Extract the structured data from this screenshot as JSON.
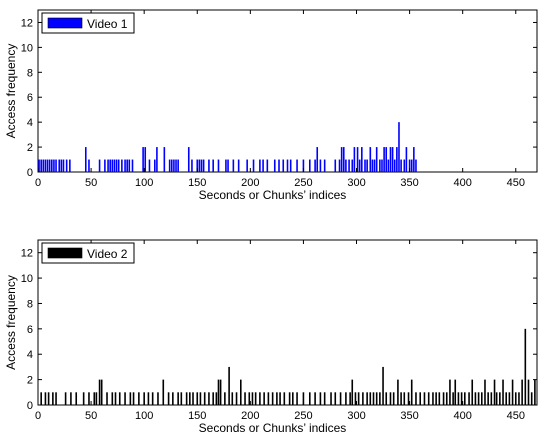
{
  "chart_data": [
    {
      "type": "bar",
      "xlabel": "Seconds or Chunks’ indices",
      "ylabel": "Access frequency",
      "xlim": [
        0,
        470
      ],
      "ylim": [
        0,
        13
      ],
      "xticks": [
        "0",
        "50",
        "100",
        "150",
        "200",
        "250",
        "300",
        "350",
        "400",
        "450"
      ],
      "yticks": [
        "0",
        "2",
        "4",
        "6",
        "8",
        "10",
        "12"
      ],
      "legend_position": "top-left",
      "color": "#0000ff",
      "series": [
        {
          "name": "Video 1",
          "x": [
            1,
            3,
            5,
            7,
            9,
            11,
            13,
            15,
            17,
            20,
            22,
            24,
            27,
            30,
            45,
            48,
            58,
            63,
            66,
            68,
            70,
            72,
            74,
            76,
            79,
            82,
            84,
            86,
            89,
            99,
            101,
            105,
            110,
            112,
            119,
            124,
            126,
            128,
            130,
            132,
            142,
            145,
            150,
            152,
            154,
            156,
            161,
            165,
            170,
            177,
            179,
            184,
            189,
            197,
            203,
            209,
            212,
            216,
            223,
            227,
            231,
            235,
            238,
            244,
            250,
            256,
            261,
            263,
            266,
            270,
            280,
            284,
            286,
            288,
            290,
            293,
            296,
            298,
            301,
            303,
            305,
            308,
            310,
            313,
            315,
            317,
            319,
            322,
            324,
            326,
            328,
            330,
            332,
            334,
            336,
            338,
            340,
            342,
            345,
            347,
            350,
            352,
            354,
            356
          ],
          "values": [
            1,
            1,
            1,
            1,
            1,
            1,
            1,
            1,
            1,
            1,
            1,
            1,
            1,
            1,
            2,
            1,
            1,
            1,
            1,
            1,
            1,
            1,
            1,
            1,
            1,
            1,
            1,
            1,
            1,
            2,
            2,
            1,
            1,
            2,
            2,
            1,
            1,
            1,
            1,
            1,
            2,
            1,
            1,
            1,
            1,
            1,
            1,
            1,
            1,
            1,
            1,
            1,
            1,
            1,
            1,
            1,
            1,
            1,
            1,
            1,
            1,
            1,
            1,
            1,
            1,
            1,
            1,
            2,
            1,
            1,
            1,
            1,
            2,
            2,
            1,
            1,
            1,
            2,
            2,
            1,
            2,
            1,
            1,
            2,
            1,
            1,
            2,
            1,
            1,
            2,
            2,
            1,
            2,
            2,
            1,
            2,
            4,
            1,
            1,
            2,
            1,
            1,
            2,
            1
          ]
        }
      ]
    },
    {
      "type": "bar",
      "xlabel": "Seconds or Chunks’ indices",
      "ylabel": "Access frequency",
      "xlim": [
        0,
        470
      ],
      "ylim": [
        0,
        13
      ],
      "xticks": [
        "0",
        "50",
        "100",
        "150",
        "200",
        "250",
        "300",
        "350",
        "400",
        "450"
      ],
      "yticks": [
        "0",
        "2",
        "4",
        "6",
        "8",
        "10",
        "12"
      ],
      "legend_position": "top-left",
      "color": "#000000",
      "series": [
        {
          "name": "Video 2",
          "x": [
            3,
            7,
            10,
            14,
            17,
            26,
            31,
            36,
            43,
            48,
            53,
            55,
            58,
            60,
            65,
            70,
            73,
            77,
            82,
            87,
            90,
            95,
            100,
            104,
            108,
            113,
            118,
            123,
            127,
            132,
            135,
            140,
            143,
            146,
            150,
            153,
            157,
            161,
            165,
            168,
            170,
            172,
            176,
            180,
            183,
            187,
            191,
            195,
            199,
            202,
            205,
            209,
            213,
            217,
            221,
            225,
            228,
            232,
            237,
            240,
            244,
            250,
            256,
            261,
            266,
            270,
            276,
            280,
            285,
            290,
            294,
            296,
            299,
            302,
            306,
            310,
            313,
            316,
            319,
            322,
            325,
            328,
            332,
            335,
            339,
            342,
            345,
            349,
            352,
            356,
            360,
            364,
            368,
            372,
            375,
            378,
            382,
            385,
            388,
            391,
            393,
            396,
            399,
            402,
            406,
            409,
            412,
            415,
            418,
            421,
            424,
            427,
            430,
            432,
            435,
            438,
            441,
            444,
            447,
            450,
            453,
            456,
            459,
            462,
            465,
            468
          ],
          "values": [
            1,
            1,
            1,
            1,
            1,
            1,
            1,
            1,
            1,
            1,
            1,
            1,
            2,
            2,
            1,
            1,
            1,
            1,
            1,
            1,
            1,
            1,
            1,
            1,
            1,
            1,
            2,
            1,
            1,
            1,
            1,
            1,
            1,
            1,
            1,
            1,
            1,
            1,
            1,
            1,
            2,
            2,
            1,
            3,
            1,
            1,
            2,
            1,
            1,
            1,
            1,
            1,
            1,
            1,
            1,
            1,
            1,
            1,
            1,
            1,
            1,
            1,
            1,
            1,
            1,
            1,
            1,
            1,
            1,
            1,
            1,
            2,
            1,
            1,
            1,
            1,
            1,
            1,
            1,
            1,
            3,
            1,
            1,
            1,
            2,
            1,
            1,
            1,
            2,
            1,
            1,
            1,
            1,
            1,
            1,
            1,
            1,
            1,
            2,
            1,
            2,
            1,
            1,
            1,
            1,
            2,
            1,
            1,
            1,
            2,
            1,
            1,
            2,
            1,
            1,
            2,
            1,
            1,
            2,
            1,
            1,
            2,
            6,
            2,
            1,
            2
          ]
        }
      ]
    }
  ]
}
